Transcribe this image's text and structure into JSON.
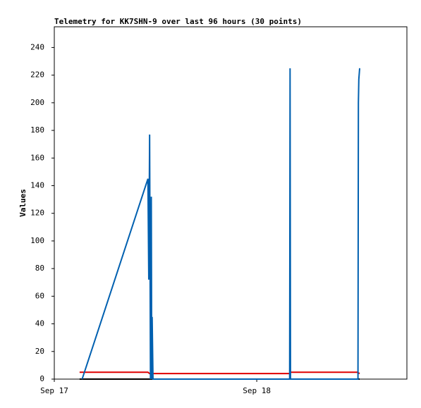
{
  "chart_data": {
    "type": "line",
    "title": "Telemetry for KK7SHN-9 over last 96 hours (30 points)",
    "ylabel": "Values",
    "xlim": [
      0,
      41.8
    ],
    "xticks": [
      {
        "value": 0,
        "label": "Sep 17"
      },
      {
        "value": 24,
        "label": "Sep 18"
      }
    ],
    "ylim": [
      0,
      255
    ],
    "yticks": [
      0,
      20,
      40,
      60,
      80,
      100,
      120,
      140,
      160,
      180,
      200,
      220,
      240
    ],
    "series": [
      {
        "color": "#000000",
        "x": [
          3.0,
          36.2
        ],
        "values": [
          0,
          0
        ]
      },
      {
        "color": "#e00000",
        "x": [
          3.0,
          11.1,
          11.3,
          27.9,
          28.0,
          35.9,
          36.2
        ],
        "values": [
          5,
          5,
          4,
          4,
          5,
          5,
          4
        ]
      },
      {
        "color": "#0060b0",
        "x": [
          3.3,
          11.1,
          11.2,
          11.3,
          11.4,
          11.5,
          11.55,
          11.6,
          11.7,
          11.8,
          27.9,
          27.95,
          28.0,
          36.0,
          36.05,
          36.1,
          36.2
        ],
        "values": [
          0,
          145,
          72,
          177,
          0,
          132,
          0,
          45,
          0,
          0,
          0,
          225,
          0,
          0,
          200,
          217,
          225
        ]
      }
    ]
  }
}
